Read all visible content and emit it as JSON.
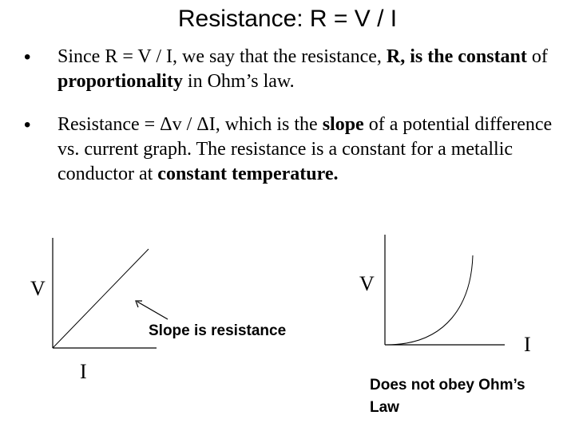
{
  "slide": {
    "title": "Resistance: R = V / I",
    "bullet_marker": "•",
    "bullet1": {
      "t1": "Since R = V / I, we say that the resistance, ",
      "t2": "R, is the constant",
      "t3": " of ",
      "t4": "proportionality",
      "t5": " in Ohm’s law."
    },
    "bullet2": {
      "t1": "Resistance = Δv / ΔI,  which is the ",
      "t2": "slope",
      "t3": " of a potential difference vs. current graph. The resistance is a constant for a metallic conductor at ",
      "t4": "constant temperature."
    }
  },
  "graph_left": {
    "y_label": "V",
    "x_label": "I",
    "annotation": "Slope is resistance"
  },
  "graph_right": {
    "y_label": "V",
    "x_label": "I",
    "caption_line1": "Does not obey Ohm’s",
    "caption_line2": "Law"
  }
}
